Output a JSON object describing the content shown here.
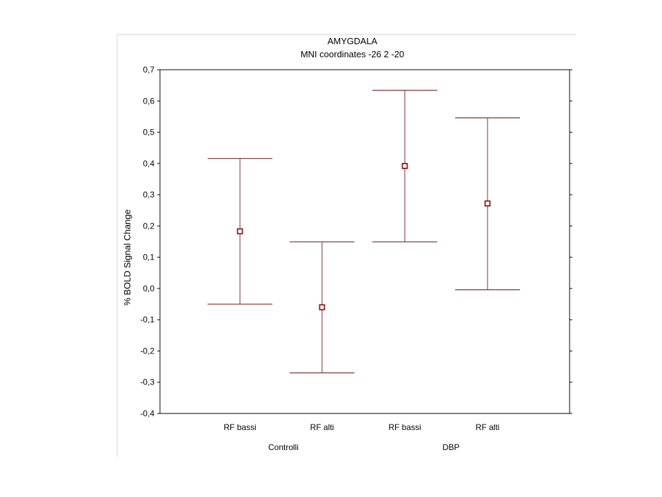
{
  "chart_data": {
    "type": "errorbar",
    "title": "AMYGDALA",
    "subtitle": "MNI coordinates -26 2 -20",
    "ylabel": "% BOLD Signal Change",
    "ylim": [
      -0.4,
      0.7
    ],
    "y_ticks": [
      "0,7",
      "0,6",
      "0,5",
      "0,4",
      "0,3",
      "0,2",
      "0,1",
      "0,0",
      "-0,1",
      "-0,2",
      "-0,3",
      "-0,4"
    ],
    "groups": [
      "Controlli",
      "DBP"
    ],
    "categories": [
      "RF bassi",
      "RF alti",
      "RF bassi",
      "RF alti"
    ],
    "points": [
      {
        "label": "RF bassi",
        "group": "Controlli",
        "mean": 0.183,
        "lower": -0.05,
        "upper": 0.416
      },
      {
        "label": "RF alti",
        "group": "Controlli",
        "mean": -0.06,
        "lower": -0.27,
        "upper": 0.149
      },
      {
        "label": "RF bassi",
        "group": "DBP",
        "mean": 0.392,
        "lower": 0.149,
        "upper": 0.634
      },
      {
        "label": "RF alti",
        "group": "DBP",
        "mean": 0.272,
        "lower": -0.004,
        "upper": 0.546
      }
    ],
    "grid": false,
    "colors": {
      "errorbar": "#7a2f2f",
      "marker": "#8b1a1a"
    }
  }
}
